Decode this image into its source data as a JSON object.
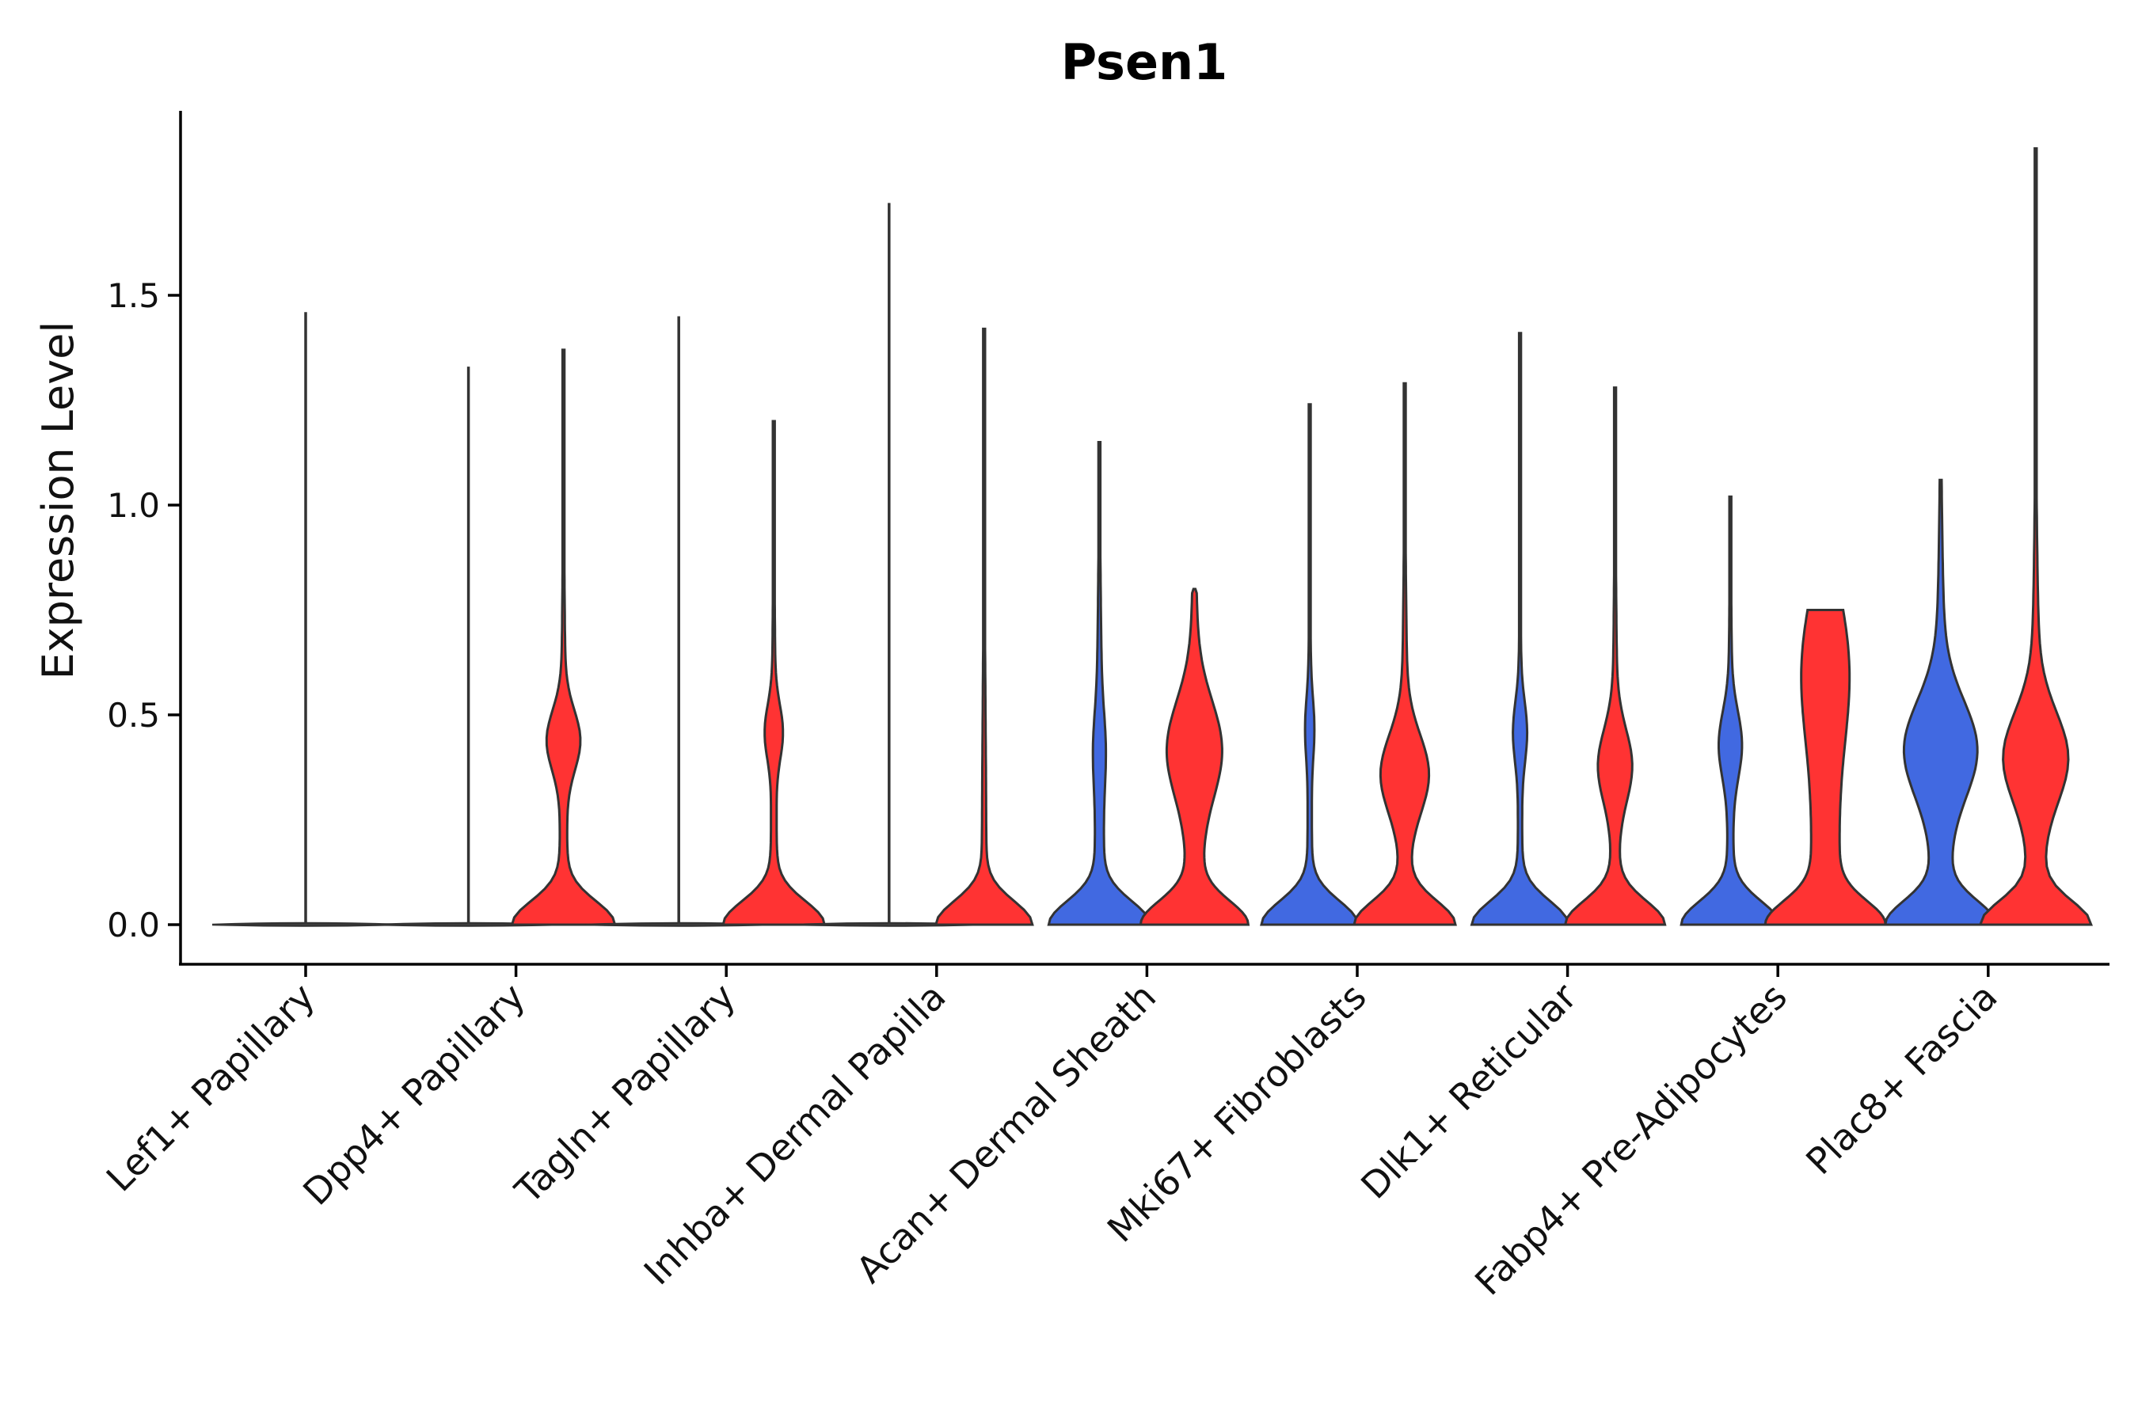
{
  "chart_data": {
    "type": "violin",
    "title": "Psen1",
    "xlabel": "",
    "ylabel": "Expression Level",
    "ylim": [
      -0.1,
      1.95
    ],
    "yticks": [
      "0.0",
      "0.5",
      "1.0",
      "1.5"
    ],
    "ytick_values": [
      0,
      0.5,
      1.0,
      1.5
    ],
    "categories": [
      "Lef1+ Papillary",
      "Dpp4+ Papillary",
      "Tagln+ Papillary",
      "Inhba+ Dermal Papilla",
      "Acan+ Dermal Sheath",
      "Mki67+ Fibroblasts",
      "Dlk1+ Reticular",
      "Fabp4+ Pre-Adipocytes",
      "Plac8+ Fascia"
    ],
    "series": [
      {
        "name": "group1",
        "color": "#4169E1",
        "max_values": [
          1.46,
          1.33,
          1.45,
          1.72,
          1.15,
          1.24,
          1.41,
          1.02,
          1.06
        ]
      },
      {
        "name": "group2",
        "color": "#FF3333",
        "max_values": [
          null,
          1.37,
          1.2,
          1.42,
          0.8,
          1.29,
          1.28,
          0.75,
          1.85
        ]
      }
    ],
    "grid": false,
    "legend": "none"
  }
}
